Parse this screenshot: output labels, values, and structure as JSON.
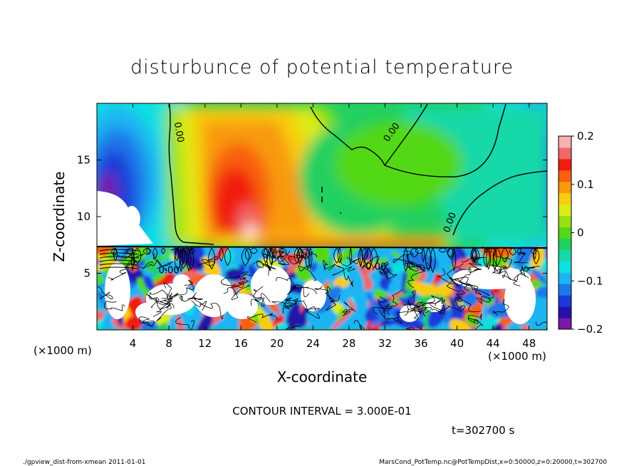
{
  "chart_data": {
    "type": "heatmap",
    "title": "disturbunce of potential temperature",
    "xlabel": "X-coordinate",
    "ylabel": "Z-coordinate",
    "x_unit": "(×1000 m)",
    "y_unit": "(×1000 m)",
    "xlim": [
      0,
      50
    ],
    "ylim": [
      0,
      20
    ],
    "xticks": [
      4,
      8,
      12,
      16,
      20,
      24,
      28,
      32,
      36,
      40,
      44,
      48
    ],
    "yticks": [
      5,
      10,
      15
    ],
    "colorbar": {
      "min": -0.2,
      "max": 0.2,
      "ticks": [
        {
          "value": 0.2,
          "label": "0.2"
        },
        {
          "value": 0.1,
          "label": "0.1"
        },
        {
          "value": 0,
          "label": "0"
        },
        {
          "value": -0.1,
          "label": "−0.1"
        },
        {
          "value": -0.2,
          "label": "−0.2"
        }
      ],
      "colors": [
        "#7a18a6",
        "#2412a8",
        "#1b3ad8",
        "#1f78e8",
        "#1cb4f2",
        "#10e0e0",
        "#18d8a8",
        "#22d060",
        "#52d818",
        "#98e010",
        "#dcec18",
        "#f8cc10",
        "#f89a10",
        "#f86010",
        "#f01c10",
        "#f06868",
        "#f8b0b0"
      ]
    },
    "contour_labels": [
      {
        "x": 8.8,
        "z": 17.4,
        "text": "0.00"
      },
      {
        "x": 33.0,
        "z": 17.3,
        "text": "0.00"
      },
      {
        "x": 39.5,
        "z": 9.4,
        "text": "0.00"
      },
      {
        "x": 8.0,
        "z": 5.0,
        "text": "0.00"
      },
      {
        "x": 31.0,
        "z": 5.3,
        "text": "0.00"
      }
    ],
    "contour_interval_text": "CONTOUR INTERVAL = 3.000E-01",
    "time_text": "t=302700 s"
  },
  "footer": {
    "left": "./gpview_dist-from-xmean  2011-01-01",
    "right": "MarsCond_PotTemp.nc@PotTempDist,x=0:50000,z=0:20000,t=302700"
  }
}
